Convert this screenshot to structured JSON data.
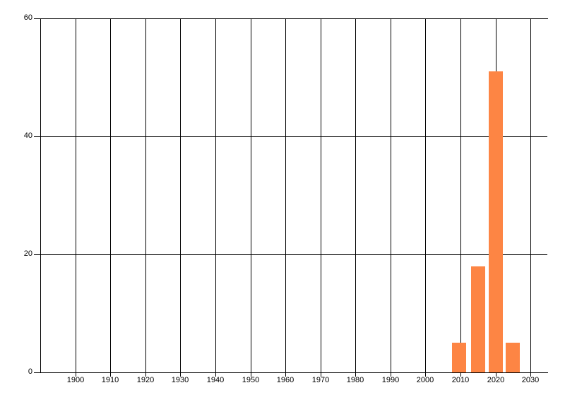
{
  "chart_data": {
    "type": "bar",
    "title": "",
    "xlabel": "",
    "ylabel": "",
    "x": [
      2009.5,
      2015,
      2020,
      2025
    ],
    "values": [
      5,
      18,
      51,
      5
    ],
    "bar_width_years": 4,
    "xlim": [
      1890,
      2035
    ],
    "ylim": [
      0,
      60
    ],
    "x_ticks": [
      1900,
      1910,
      1920,
      1930,
      1940,
      1950,
      1960,
      1970,
      1980,
      1990,
      2000,
      2010,
      2020,
      2030
    ],
    "y_ticks": [
      0,
      20,
      40,
      60
    ],
    "grid": true,
    "legend": null,
    "colors": {
      "bar": "#fd8544",
      "grid": "#000000",
      "text": "#000000",
      "background": "#ffffff"
    }
  }
}
